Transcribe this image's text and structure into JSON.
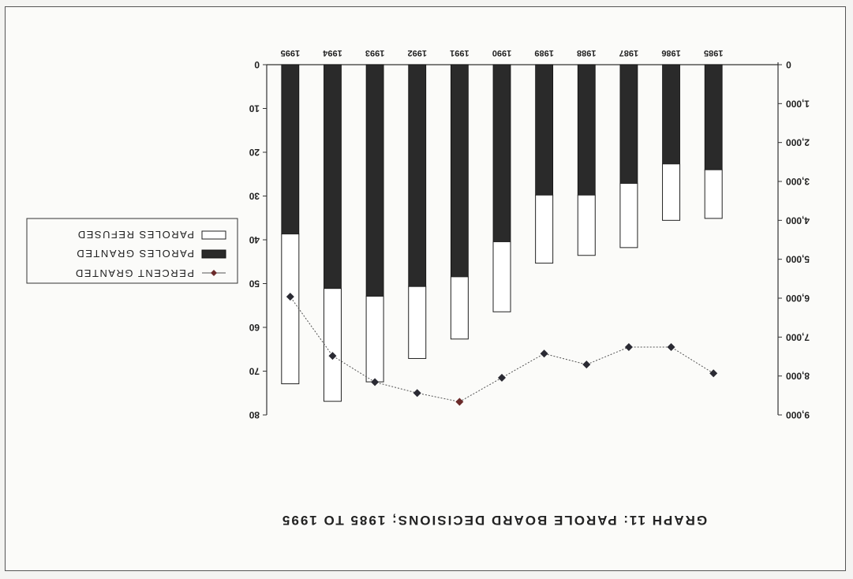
{
  "chart_data": {
    "type": "bar",
    "title": "GRAPH 11: PAROLE BOARD DECISIONS; 1985 TO 1995",
    "categories": [
      "1985",
      "1986",
      "1987",
      "1988",
      "1989",
      "1990",
      "1991",
      "1992",
      "1993",
      "1994",
      "1995"
    ],
    "stacked": true,
    "left_axis": {
      "ylim": [
        0,
        9000
      ],
      "ticks": [
        "0",
        "1,000",
        "2,000",
        "3,000",
        "4,000",
        "5,000",
        "6,000",
        "7,000",
        "8,000",
        "9,000"
      ]
    },
    "right_axis": {
      "ylim": [
        0,
        80
      ],
      "ticks": [
        "0",
        "10",
        "20",
        "30",
        "40",
        "50",
        "60",
        "70",
        "80"
      ]
    },
    "series": [
      {
        "name": "PAROLES GRANTED",
        "kind": "bar",
        "axis": "left",
        "color": "#2a2a2a",
        "values": [
          2700,
          2550,
          3050,
          3350,
          3350,
          4550,
          5450,
          5700,
          5950,
          5750,
          4350
        ]
      },
      {
        "name": "PAROLES REFUSED",
        "kind": "bar",
        "axis": "left",
        "color": "#ffffff",
        "values": [
          1250,
          1450,
          1650,
          1550,
          1750,
          1800,
          1600,
          1850,
          2200,
          2900,
          3850
        ]
      },
      {
        "name": "PERCENT GRANTED",
        "kind": "line",
        "axis": "right",
        "color": "#333333",
        "values": [
          70.5,
          64.5,
          64.5,
          68.5,
          66.0,
          71.5,
          77.0,
          75.0,
          72.5,
          66.5,
          53.0
        ]
      }
    ],
    "legend": {
      "position": "right",
      "entries": [
        "PAROLES REFUSED",
        "PAROLES GRANTED",
        "PERCENT GRANTED"
      ]
    }
  }
}
